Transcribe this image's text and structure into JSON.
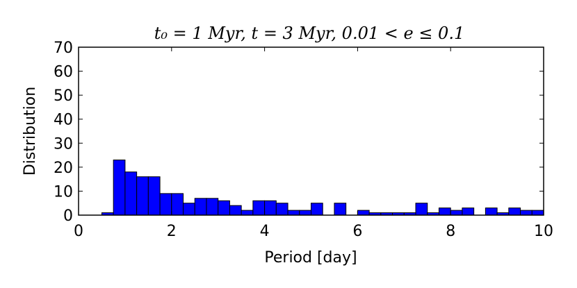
{
  "chart_data": {
    "type": "bar",
    "title": "t₀ = 1 Myr, t = 3 Myr, 0.01 < e ≤ 0.1",
    "xlabel": "Period [day]",
    "ylabel": "Distribution",
    "xlim": [
      0,
      10
    ],
    "ylim": [
      0,
      70
    ],
    "xticks": [
      "0",
      "2",
      "4",
      "6",
      "8",
      "10"
    ],
    "yticks": [
      "0",
      "10",
      "20",
      "30",
      "40",
      "50",
      "60",
      "70"
    ],
    "bin_width": 0.25,
    "bins": [
      {
        "x_start": 0.25,
        "value": 0
      },
      {
        "x_start": 0.5,
        "value": 1
      },
      {
        "x_start": 0.75,
        "value": 23
      },
      {
        "x_start": 1.0,
        "value": 18
      },
      {
        "x_start": 1.25,
        "value": 16
      },
      {
        "x_start": 1.5,
        "value": 16
      },
      {
        "x_start": 1.75,
        "value": 9
      },
      {
        "x_start": 2.0,
        "value": 9
      },
      {
        "x_start": 2.25,
        "value": 5
      },
      {
        "x_start": 2.5,
        "value": 7
      },
      {
        "x_start": 2.75,
        "value": 7
      },
      {
        "x_start": 3.0,
        "value": 6
      },
      {
        "x_start": 3.25,
        "value": 4
      },
      {
        "x_start": 3.5,
        "value": 2
      },
      {
        "x_start": 3.75,
        "value": 6
      },
      {
        "x_start": 4.0,
        "value": 6
      },
      {
        "x_start": 4.25,
        "value": 5
      },
      {
        "x_start": 4.5,
        "value": 2
      },
      {
        "x_start": 4.75,
        "value": 2
      },
      {
        "x_start": 5.0,
        "value": 5
      },
      {
        "x_start": 5.25,
        "value": 0
      },
      {
        "x_start": 5.5,
        "value": 5
      },
      {
        "x_start": 5.75,
        "value": 0
      },
      {
        "x_start": 6.0,
        "value": 2
      },
      {
        "x_start": 6.25,
        "value": 1
      },
      {
        "x_start": 6.5,
        "value": 1
      },
      {
        "x_start": 6.75,
        "value": 1
      },
      {
        "x_start": 7.0,
        "value": 1
      },
      {
        "x_start": 7.25,
        "value": 5
      },
      {
        "x_start": 7.5,
        "value": 1
      },
      {
        "x_start": 7.75,
        "value": 3
      },
      {
        "x_start": 8.0,
        "value": 2
      },
      {
        "x_start": 8.25,
        "value": 3
      },
      {
        "x_start": 8.5,
        "value": 0
      },
      {
        "x_start": 8.75,
        "value": 3
      },
      {
        "x_start": 9.0,
        "value": 1
      },
      {
        "x_start": 9.25,
        "value": 3
      },
      {
        "x_start": 9.5,
        "value": 2
      },
      {
        "x_start": 9.75,
        "value": 2
      }
    ],
    "bar_color": "#0000ff",
    "edge_color": "#000000",
    "grid": false
  }
}
